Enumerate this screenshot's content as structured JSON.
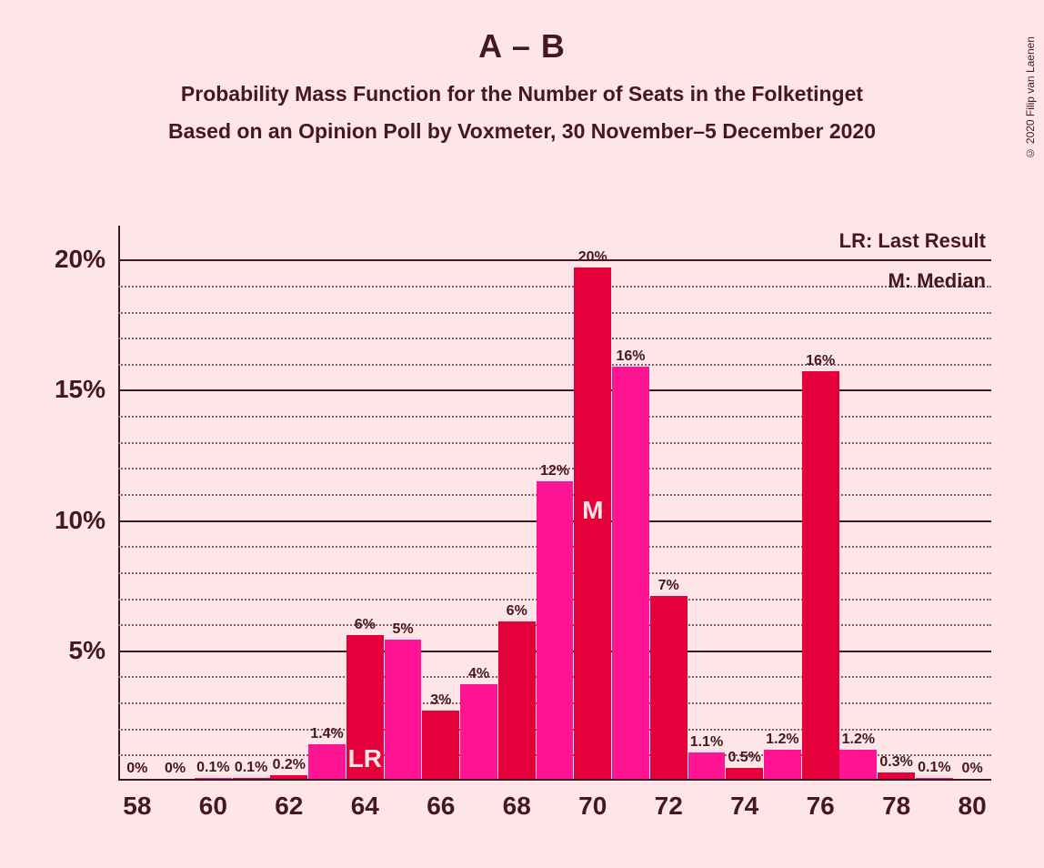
{
  "copyright": "© 2020 Filip van Laenen",
  "title": "A – B",
  "subtitle": "Probability Mass Function for the Number of Seats in the Folketinget",
  "subtitle2": "Based on an Opinion Poll by Voxmeter, 30 November–5 December 2020",
  "legend": {
    "lr": "LR: Last Result",
    "m": "M: Median"
  },
  "chart": {
    "type": "bar",
    "background_color": "#fde5e8",
    "text_color": "#451720",
    "grid_major_color": "#451720",
    "grid_minor_color": "#8a5a63",
    "colors": {
      "pink": "#ff1493",
      "red": "#e4003a"
    },
    "xlim": [
      58,
      80
    ],
    "bar_width": 0.98,
    "ymin": 0,
    "ymax": 21.3,
    "y_major_step": 5,
    "y_minor_step": 1,
    "x_tick_step": 2,
    "bars": [
      {
        "x": 58,
        "height": 0,
        "label": "0%",
        "color": "pink"
      },
      {
        "x": 59,
        "height": 0,
        "label": "0%",
        "color": "red"
      },
      {
        "x": 60,
        "height": 0.1,
        "label": "0.1%",
        "color": "pink"
      },
      {
        "x": 61,
        "height": 0.1,
        "label": "0.1%",
        "color": "red"
      },
      {
        "x": 62,
        "height": 0.2,
        "label": "0.2%",
        "color": "red"
      },
      {
        "x": 63,
        "height": 1.4,
        "label": "1.4%",
        "color": "pink"
      },
      {
        "x": 64,
        "height": 5.6,
        "label": "6%",
        "color": "red",
        "overlay": "LR",
        "overlay_pos": "bottom"
      },
      {
        "x": 65,
        "height": 5.4,
        "label": "5%",
        "color": "pink"
      },
      {
        "x": 66,
        "height": 2.7,
        "label": "3%",
        "color": "red"
      },
      {
        "x": 67,
        "height": 3.7,
        "label": "4%",
        "color": "pink"
      },
      {
        "x": 68,
        "height": 6.1,
        "label": "6%",
        "color": "red"
      },
      {
        "x": 69,
        "height": 11.5,
        "label": "12%",
        "color": "pink"
      },
      {
        "x": 70,
        "height": 19.7,
        "label": "20%",
        "color": "red",
        "overlay": "M",
        "overlay_pos": "middle"
      },
      {
        "x": 71,
        "height": 15.9,
        "label": "16%",
        "color": "pink"
      },
      {
        "x": 72,
        "height": 7.1,
        "label": "7%",
        "color": "red"
      },
      {
        "x": 73,
        "height": 1.1,
        "label": "1.1%",
        "color": "pink"
      },
      {
        "x": 74,
        "height": 0.5,
        "label": "0.5%",
        "color": "red"
      },
      {
        "x": 75,
        "height": 1.2,
        "label": "1.2%",
        "color": "pink"
      },
      {
        "x": 76,
        "height": 15.7,
        "label": "16%",
        "color": "red"
      },
      {
        "x": 77,
        "height": 1.2,
        "label": "1.2%",
        "color": "pink"
      },
      {
        "x": 78,
        "height": 0.3,
        "label": "0.3%",
        "color": "red"
      },
      {
        "x": 79,
        "height": 0.1,
        "label": "0.1%",
        "color": "pink"
      },
      {
        "x": 80,
        "height": 0,
        "label": "0%",
        "color": "red"
      }
    ]
  }
}
